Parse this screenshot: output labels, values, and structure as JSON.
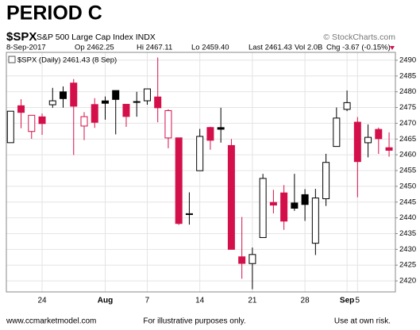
{
  "chart_data": {
    "type": "candlestick",
    "title": "PERIOD C",
    "header": {
      "symbol": "$SPX",
      "name": "S&P 500 Large Cap Index INDX",
      "source": "© StockCharts.com",
      "date": "8-Sep-2017",
      "quote": [
        "Op 2462.25",
        "Hi 2467.11",
        "Lo 2459.40",
        "Last 2461.43",
        "Vol 2.0B",
        "Chg -3.67 (-0.15%)"
      ]
    },
    "legend": "$SPX (Daily) 2461.43 (8 Sep)",
    "footer": {
      "left": "www.ccmarketmodel.com",
      "center": "For illustrative purposes only.",
      "right": "Use at own risk."
    },
    "categories": [
      null,
      null,
      null,
      "24",
      null,
      null,
      null,
      null,
      null,
      "Aug",
      null,
      null,
      null,
      "7",
      null,
      null,
      null,
      null,
      "14",
      null,
      null,
      null,
      null,
      "21",
      null,
      null,
      null,
      null,
      "28",
      null,
      null,
      null,
      "Sep",
      "5",
      null,
      null,
      null
    ],
    "open": [
      2463.85,
      2475.56,
      2467.4,
      2472.04,
      2475.88,
      2479.97,
      2482.76,
      2469.12,
      2475.94,
      2477.1,
      2480.38,
      2476.03,
      2476.88,
      2477.14,
      2478.35,
      2465.35,
      2465.38,
      2441.04,
      2454.96,
      2468.66,
      2468.63,
      2462.95,
      2427.64,
      2425.5,
      2433.75,
      2444.88,
      2447.91,
      2444.72,
      2447.35,
      2431.94,
      2446.06,
      2462.65,
      2474.42,
      2470.35,
      2463.83,
      2468.06,
      2462.25
    ],
    "high": [
      2473.83,
      2477.62,
      2472.54,
      2473.1,
      2481.24,
      2481.69,
      2484.04,
      2473.53,
      2477.96,
      2478.51,
      2480.38,
      2476.03,
      2480.0,
      2480.95,
      2490.87,
      2474.41,
      2465.38,
      2448.09,
      2468.22,
      2468.9,
      2474.93,
      2465.02,
      2440.27,
      2430.58,
      2453.96,
      2448.91,
      2450.39,
      2453.96,
      2449.12,
      2449.19,
      2460.31,
      2475.01,
      2480.38,
      2471.97,
      2469.64,
      2468.62,
      2467.11
    ],
    "low": [
      2463.85,
      2468.43,
      2465.06,
      2466.32,
      2474.91,
      2474.94,
      2459.93,
      2464.66,
      2468.53,
      2471.14,
      2466.48,
      2468.85,
      2472.08,
      2475.88,
      2470.32,
      2462.08,
      2437.75,
      2437.85,
      2454.96,
      2461.61,
      2463.86,
      2430.01,
      2420.69,
      2417.35,
      2433.75,
      2441.42,
      2436.19,
      2442.22,
      2439.03,
      2428.2,
      2443.77,
      2462.65,
      2473.85,
      2446.55,
      2459.2,
      2460.29,
      2459.4
    ],
    "close": [
      2473.83,
      2473.45,
      2472.54,
      2469.91,
      2477.13,
      2477.83,
      2475.42,
      2472.1,
      2470.3,
      2476.35,
      2477.57,
      2472.16,
      2476.83,
      2480.91,
      2474.92,
      2474.02,
      2438.21,
      2441.32,
      2465.84,
      2464.61,
      2468.11,
      2430.01,
      2425.55,
      2428.37,
      2452.51,
      2444.04,
      2438.97,
      2443.05,
      2444.24,
      2446.3,
      2457.59,
      2471.65,
      2476.55,
      2457.85,
      2465.54,
      2465.1,
      2461.43
    ],
    "up_color": "#000000",
    "down_color": "#d4104a",
    "ylim": [
      2416.5,
      2492.5
    ],
    "yticks": [
      2420,
      2425,
      2430,
      2435,
      2440,
      2445,
      2450,
      2455,
      2460,
      2465,
      2470,
      2475,
      2480,
      2485,
      2490
    ],
    "grid": true
  }
}
